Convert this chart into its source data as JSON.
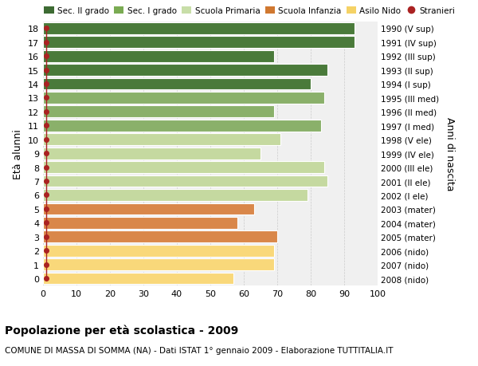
{
  "ages": [
    0,
    1,
    2,
    3,
    4,
    5,
    6,
    7,
    8,
    9,
    10,
    11,
    12,
    13,
    14,
    15,
    16,
    17,
    18
  ],
  "values": [
    57,
    69,
    69,
    70,
    58,
    63,
    79,
    85,
    84,
    65,
    71,
    83,
    69,
    84,
    80,
    85,
    69,
    93,
    93
  ],
  "right_labels": [
    "2008 (nido)",
    "2007 (nido)",
    "2006 (nido)",
    "2005 (mater)",
    "2004 (mater)",
    "2003 (mater)",
    "2002 (I ele)",
    "2001 (II ele)",
    "2000 (III ele)",
    "1999 (IV ele)",
    "1998 (V ele)",
    "1997 (I med)",
    "1996 (II med)",
    "1995 (III med)",
    "1994 (I sup)",
    "1993 (II sup)",
    "1992 (III sup)",
    "1991 (IV sup)",
    "1990 (V sup)"
  ],
  "bar_colors": [
    "#f9d87a",
    "#f9d87a",
    "#f9d87a",
    "#d9874a",
    "#d9874a",
    "#d9874a",
    "#c5d9a0",
    "#c5d9a0",
    "#c5d9a0",
    "#c5d9a0",
    "#c5d9a0",
    "#8ab06a",
    "#8ab06a",
    "#8ab06a",
    "#4a7a3a",
    "#4a7a3a",
    "#4a7a3a",
    "#4a7a3a",
    "#4a7a3a"
  ],
  "dot_color": "#aa2222",
  "legend_labels": [
    "Sec. II grado",
    "Sec. I grado",
    "Scuola Primaria",
    "Scuola Infanzia",
    "Asilo Nido",
    "Stranieri"
  ],
  "legend_colors": [
    "#3d6b33",
    "#7aab52",
    "#c8dea8",
    "#d07830",
    "#f5d265",
    "#aa2222"
  ],
  "legend_marker_types": [
    "rect",
    "rect",
    "rect",
    "rect",
    "rect",
    "dot"
  ],
  "xlabel_main": "Popolazione per età scolastica - 2009",
  "xlabel_sub": "COMUNE DI MASSA DI SOMMA (NA) - Dati ISTAT 1° gennaio 2009 - Elaborazione TUTTITALIA.IT",
  "ylabel_left": "Età alunni",
  "ylabel_right": "Anni di nascita",
  "xlim": [
    0,
    100
  ],
  "xticks": [
    0,
    10,
    20,
    30,
    40,
    50,
    60,
    70,
    80,
    90,
    100
  ],
  "bg_color": "#f0f0f0",
  "bar_edge_color": "#ffffff",
  "grid_color": "#cccccc",
  "fig_bg": "#ffffff"
}
